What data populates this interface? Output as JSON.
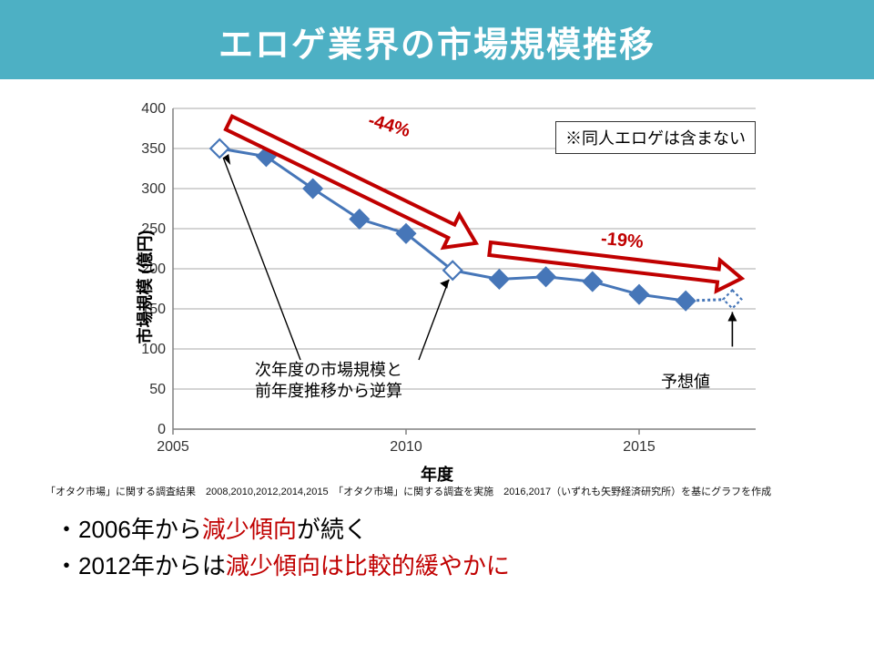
{
  "title": "エロゲ業界の市場規模推移",
  "chart": {
    "type": "line",
    "data": {
      "years": [
        2006,
        2007,
        2008,
        2009,
        2010,
        2011,
        2012,
        2013,
        2014,
        2015,
        2016,
        2017
      ],
      "values": [
        350,
        340,
        300,
        262,
        244,
        198,
        187,
        190,
        184,
        168,
        160,
        162
      ],
      "open_markers_idx": [
        0,
        5
      ],
      "forecast_idx": [
        11
      ]
    },
    "style": {
      "line_color": "#4676b8",
      "line_width": 3,
      "marker_fill": "#4676b8",
      "marker_open_fill": "#ffffff",
      "marker_stroke": "#4676b8",
      "marker_size": 10,
      "forecast_dash": "3 3",
      "axis_color": "#808080",
      "grid_color": "#a8a8a8",
      "tick_font_size": 16,
      "label_font_size": 18,
      "label_font_weight": "bold",
      "background": "#ffffff",
      "arrow_color": "#c00000",
      "arrow_fill": "#ffffff",
      "arrow_stroke_width": 4,
      "callout_line_color": "#000000"
    },
    "axes": {
      "x": {
        "label": "年度",
        "min": 2005,
        "max": 2017.5,
        "ticks": [
          2005,
          2010,
          2015
        ]
      },
      "y": {
        "label": "市場規模 (億円)",
        "min": 0,
        "max": 400,
        "tick_step": 50
      }
    },
    "annotations": {
      "note_box": {
        "text": "※同人エロゲは含まない"
      },
      "arrow1": {
        "label": "-44%"
      },
      "arrow2": {
        "label": "-19%"
      },
      "callout_back": {
        "text_lines": [
          "次年度の市場規模と",
          "前年度推移から逆算"
        ]
      },
      "forecast_callout": {
        "text": "予想値"
      }
    }
  },
  "source": "「オタク市場」に関する調査結果　2008,2010,2012,2014,2015　「オタク市場」に関する調査を実施　2016,2017（いずれも矢野経済研究所）を基にグラフを作成",
  "bullets": {
    "b1_pre": "・2006年から",
    "b1_red": "減少傾向",
    "b1_post": "が続く",
    "b2_pre": "・2012年からは",
    "b2_red": "減少傾向は比較的緩やかに",
    "b2_post": ""
  }
}
